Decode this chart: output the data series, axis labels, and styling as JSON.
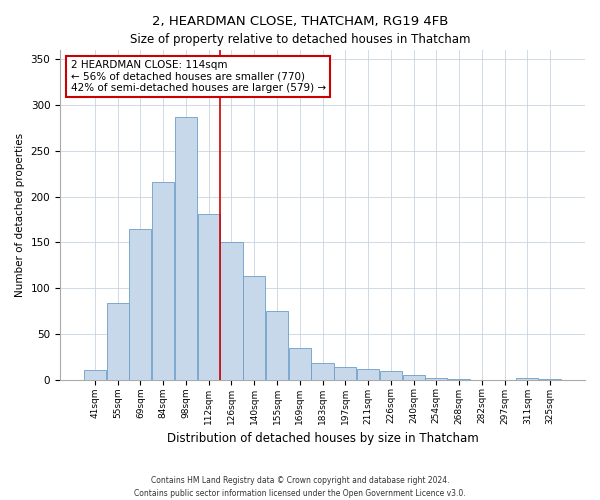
{
  "title": "2, HEARDMAN CLOSE, THATCHAM, RG19 4FB",
  "subtitle": "Size of property relative to detached houses in Thatcham",
  "xlabel": "Distribution of detached houses by size in Thatcham",
  "ylabel": "Number of detached properties",
  "bar_labels": [
    "41sqm",
    "55sqm",
    "69sqm",
    "84sqm",
    "98sqm",
    "112sqm",
    "126sqm",
    "140sqm",
    "155sqm",
    "169sqm",
    "183sqm",
    "197sqm",
    "211sqm",
    "226sqm",
    "240sqm",
    "254sqm",
    "268sqm",
    "282sqm",
    "297sqm",
    "311sqm",
    "325sqm"
  ],
  "bar_values": [
    11,
    84,
    164,
    216,
    287,
    181,
    150,
    113,
    75,
    35,
    18,
    14,
    12,
    9,
    5,
    2,
    1,
    0,
    0,
    2,
    1
  ],
  "bar_color": "#c8d8eb",
  "bar_edge_color": "#6b9ec8",
  "vline_color": "#cc0000",
  "annotation_title": "2 HEARDMAN CLOSE: 114sqm",
  "annotation_line1": "← 56% of detached houses are smaller (770)",
  "annotation_line2": "42% of semi-detached houses are larger (579) →",
  "annotation_box_color": "#cc0000",
  "ylim": [
    0,
    360
  ],
  "yticks": [
    0,
    50,
    100,
    150,
    200,
    250,
    300,
    350
  ],
  "footnote1": "Contains HM Land Registry data © Crown copyright and database right 2024.",
  "footnote2": "Contains public sector information licensed under the Open Government Licence v3.0."
}
